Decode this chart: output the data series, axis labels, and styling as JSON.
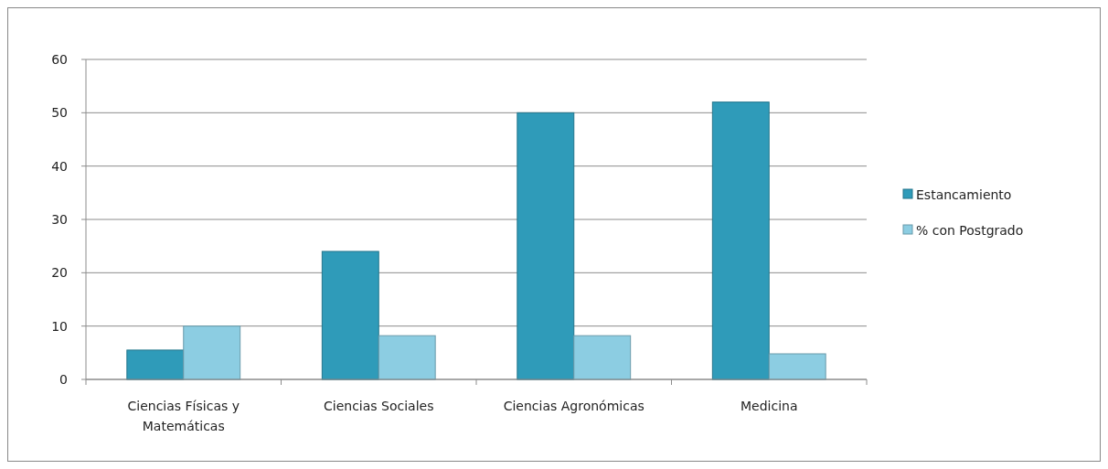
{
  "chart_data": {
    "type": "bar",
    "categories": [
      "Ciencias Físicas y Matemáticas",
      "Ciencias Sociales",
      "Ciencias Agronómicas",
      "Medicina"
    ],
    "series": [
      {
        "name": "Estancamiento",
        "color": "#2f9bb9",
        "values": [
          5.5,
          24,
          50,
          52
        ]
      },
      {
        "name": "% con Postgrado",
        "color": "#8ccde2",
        "values": [
          10,
          8.2,
          8.2,
          4.8
        ]
      }
    ],
    "ylim": [
      0,
      60
    ],
    "yticks": [
      0,
      10,
      20,
      30,
      40,
      50,
      60
    ],
    "grid": "y",
    "legend": "right"
  }
}
